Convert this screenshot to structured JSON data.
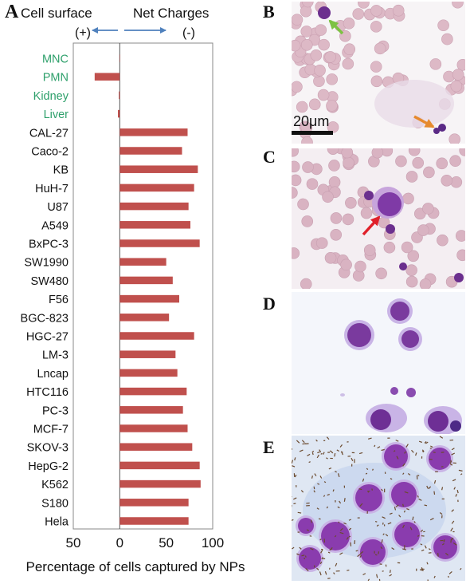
{
  "panel_labels": {
    "a": "A",
    "b": "B",
    "c": "C",
    "d": "D",
    "e": "E"
  },
  "header": {
    "left": "Cell surface",
    "right": "Net Charges",
    "plus": "(+)",
    "minus": "(-)"
  },
  "scale_bar": "20μm",
  "colors": {
    "bar": "#c0504d",
    "highlight_label": "#2ea06b",
    "arrow": "#4f81bd",
    "green_arrow": "#7dc242",
    "orange_arrow": "#e68a2e",
    "red_arrow": "#e0202a",
    "blood_bg": "#f6e6ec",
    "rbc": "#d9b8c4",
    "nucleus": "#7a3a9e",
    "cytoplasm": "#c9a6dd",
    "e_bg": "#c7d6ec",
    "particle": "#6b4a2e"
  },
  "chart_data": {
    "type": "bar",
    "orientation": "horizontal",
    "xlabel": "Percentage of cells captured by NPs",
    "ylabel": "",
    "xlim": [
      -50,
      100
    ],
    "xtick_values": [
      -50,
      0,
      50,
      100
    ],
    "xtick_labels": [
      "50",
      "0",
      "50",
      "100"
    ],
    "highlighted_categories": [
      "MNC",
      "PMN",
      "Kidney",
      "Liver"
    ],
    "categories": [
      "MNC",
      "PMN",
      "Kidney",
      "Liver",
      "CAL-27",
      "Caco-2",
      "KB",
      "HuH-7",
      "U87",
      "A549",
      "BxPC-3",
      "SW1990",
      "SW480",
      "F56",
      "BGC-823",
      "HGC-27",
      "LM-3",
      "Lncap",
      "HTC116",
      "PC-3",
      "MCF-7",
      "SKOV-3",
      "HepG-2",
      "K562",
      "S180",
      "Hela"
    ],
    "values": [
      0,
      -27,
      -1,
      -2,
      73,
      67,
      84,
      80,
      74,
      76,
      86,
      50,
      57,
      64,
      53,
      80,
      60,
      62,
      72,
      68,
      73,
      78,
      86,
      87,
      74,
      74
    ]
  }
}
